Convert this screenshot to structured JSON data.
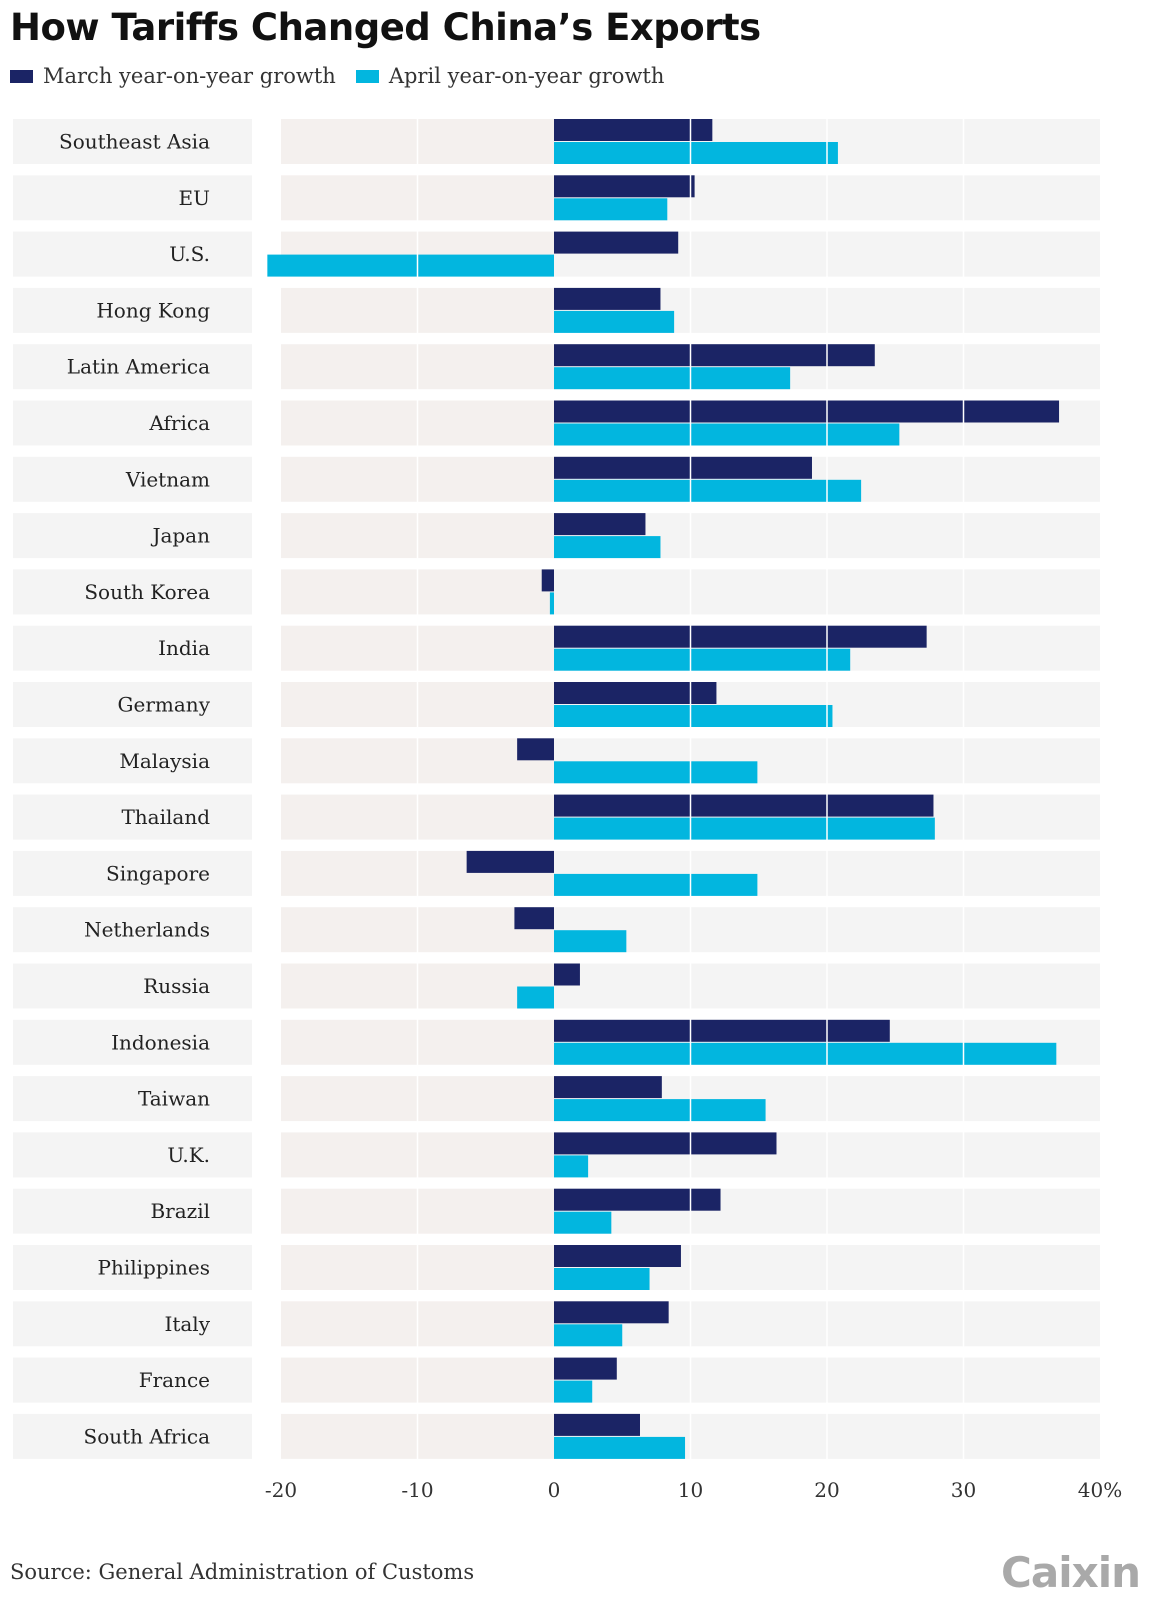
{
  "title": "How Tariffs Changed China’s Exports",
  "legend": {
    "march_label": "March year-on-year growth",
    "april_label": "April year-on-year growth"
  },
  "source": "Source: General Administration of Customs",
  "logo": "Caixin",
  "colors": {
    "march": "#1b2465",
    "april": "#02b6df",
    "row_bg": "#f4f4f4",
    "neg_bg": "#f4f0ee"
  },
  "chart_data": {
    "type": "bar",
    "orientation": "horizontal",
    "title": "How Tariffs Changed China’s Exports",
    "xlabel": "",
    "ylabel": "",
    "xlim": [
      -20,
      40
    ],
    "ticks": [
      "-20",
      "-10",
      "0",
      "10",
      "20",
      "30",
      "40%"
    ],
    "tick_values": [
      -20,
      -10,
      0,
      10,
      20,
      30,
      40
    ],
    "categories": [
      "Southeast Asia",
      "EU",
      "U.S.",
      "Hong Kong",
      "Latin America",
      "Africa",
      "Vietnam",
      "Japan",
      "South Korea",
      "India",
      "Germany",
      "Malaysia",
      "Thailand",
      "Singapore",
      "Netherlands",
      "Russia",
      "Indonesia",
      "Taiwan",
      "U.K.",
      "Brazil",
      "Philippines",
      "Italy",
      "France",
      "South Africa"
    ],
    "series": [
      {
        "name": "March year-on-year growth",
        "values": [
          11.6,
          10.3,
          9.1,
          7.8,
          23.5,
          37.0,
          18.9,
          6.7,
          -0.9,
          27.3,
          11.9,
          -2.7,
          27.8,
          -6.4,
          -2.9,
          1.9,
          24.6,
          7.9,
          16.3,
          12.2,
          9.3,
          8.4,
          4.6,
          6.3
        ]
      },
      {
        "name": "April year-on-year growth",
        "values": [
          20.8,
          8.3,
          -21.0,
          8.8,
          17.3,
          25.3,
          22.5,
          7.8,
          -0.3,
          21.7,
          20.4,
          14.9,
          27.9,
          14.9,
          5.3,
          -2.7,
          36.8,
          15.5,
          2.5,
          4.2,
          7.0,
          5.0,
          2.8,
          9.6
        ]
      }
    ]
  }
}
